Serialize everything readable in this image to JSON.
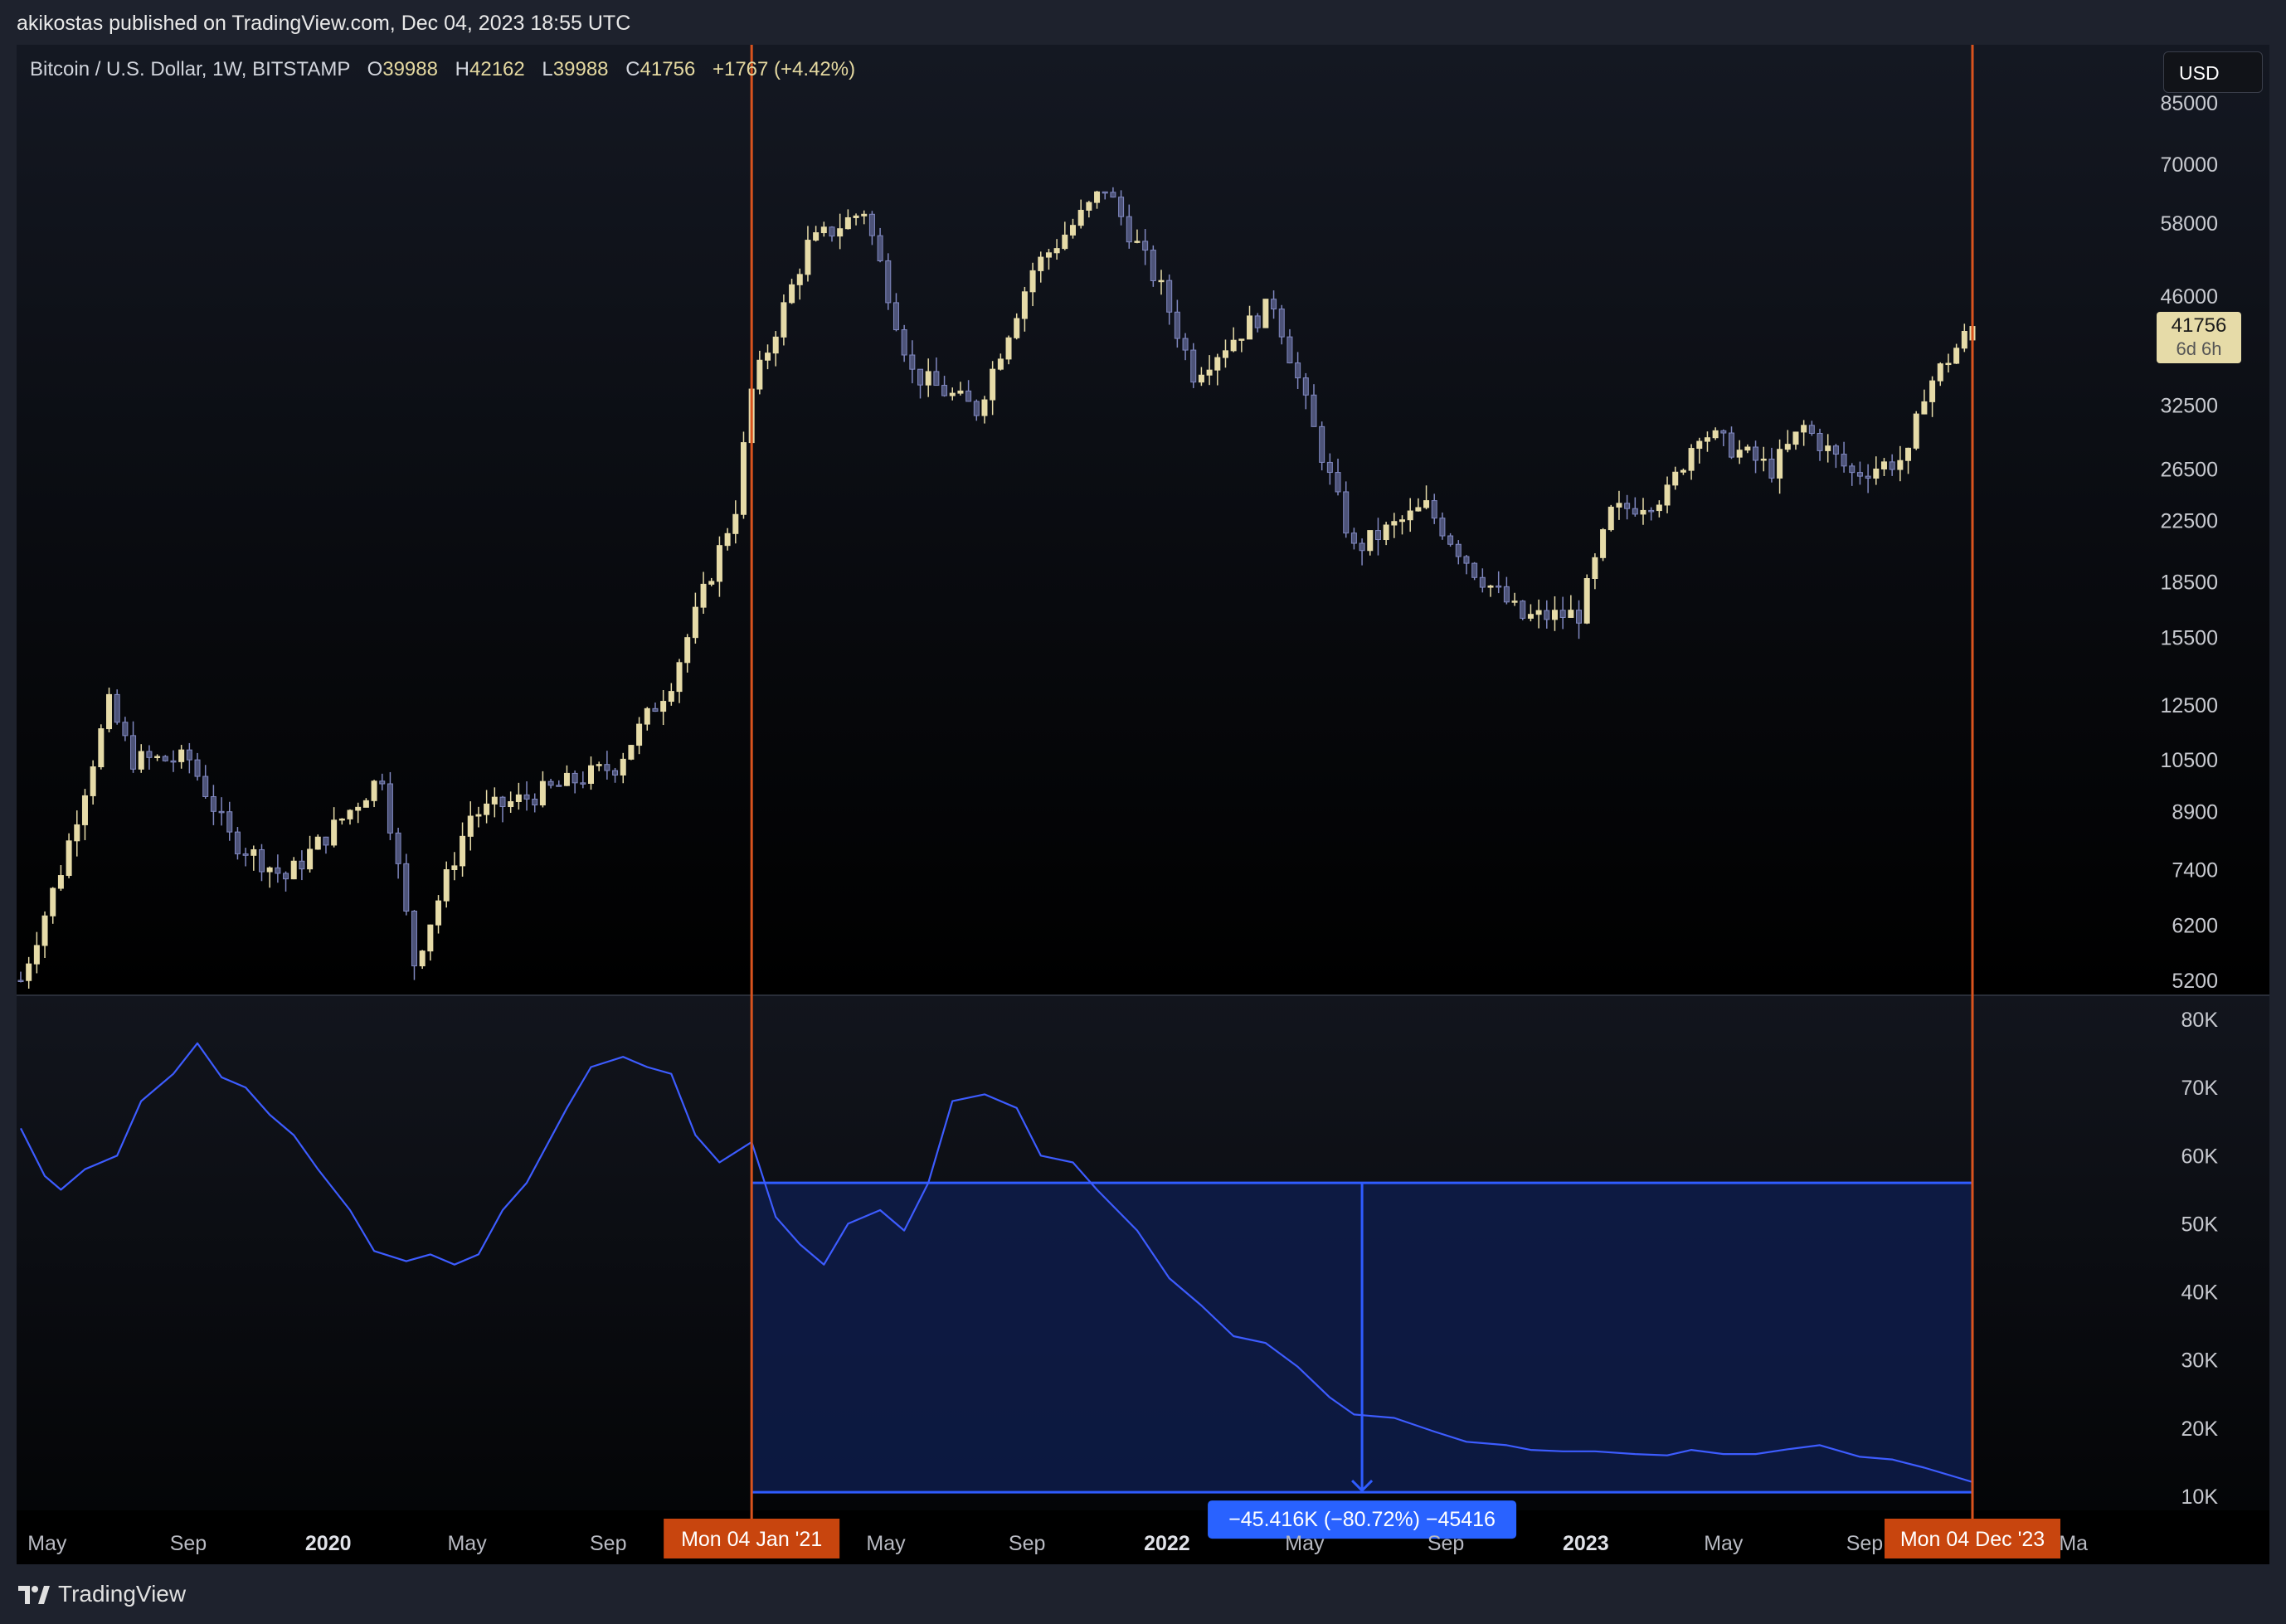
{
  "publisher_line": "akikostas published on TradingView.com, Dec 04, 2023 18:55 UTC",
  "legend": {
    "symbol": "Bitcoin / U.S. Dollar, 1W, BITSTAMP",
    "open_label": "O",
    "open": "39988",
    "high_label": "H",
    "high": "42162",
    "low_label": "L",
    "low": "39988",
    "close_label": "C",
    "close": "41756",
    "change": "+1767 (+4.42%)"
  },
  "currency_button": "USD",
  "price_tag": {
    "price": "41756",
    "countdown": "6d 6h"
  },
  "brand": "TradingView",
  "colors": {
    "background": "#000000",
    "bull_candle": "#e6dba8",
    "bear_candle": "#8088c0",
    "indicator_line": "#3d5cff",
    "range_fill": "#0e1c4a",
    "range_border": "#2f5cff",
    "vertical_marker": "#d9531e",
    "date_marker_bg": "#c8450e"
  },
  "chart_data": {
    "type": "candlestick",
    "title": "Bitcoin / U.S. Dollar, 1W, BITSTAMP",
    "price_axis": {
      "scale": "log",
      "ticks": [
        "85000",
        "70000",
        "58000",
        "46000",
        "32500",
        "26500",
        "22500",
        "18500",
        "15500",
        "12500",
        "10500",
        "8900",
        "7400",
        "6200",
        "5200"
      ]
    },
    "indicator_axis": {
      "ticks": [
        "80K",
        "70K",
        "60K",
        "50K",
        "40K",
        "30K",
        "20K",
        "10K"
      ]
    },
    "time_axis": {
      "ticks": [
        "May",
        "Sep",
        "2020",
        "May",
        "Sep",
        "May",
        "Sep",
        "2022",
        "May",
        "Sep",
        "2023",
        "May",
        "Sep",
        "Ma"
      ],
      "bold": [
        "2020",
        "2022",
        "2023"
      ]
    },
    "price_path": [
      [
        "2019-04-08",
        5200
      ],
      [
        "2019-05-13",
        7400
      ],
      [
        "2019-06-24",
        12500
      ],
      [
        "2019-07-15",
        10500
      ],
      [
        "2019-09-02",
        10500
      ],
      [
        "2019-10-07",
        8200
      ],
      [
        "2019-11-25",
        7200
      ],
      [
        "2020-01-13",
        8700
      ],
      [
        "2020-02-17",
        10000
      ],
      [
        "2020-03-16",
        5500
      ],
      [
        "2020-05-04",
        8800
      ],
      [
        "2020-06-22",
        9300
      ],
      [
        "2020-09-07",
        10300
      ],
      [
        "2020-10-26",
        13500
      ],
      [
        "2020-12-21",
        23500
      ],
      [
        "2021-01-04",
        34000
      ],
      [
        "2021-02-22",
        54000
      ],
      [
        "2021-04-12",
        60500
      ],
      [
        "2021-05-24",
        36000
      ],
      [
        "2021-07-19",
        32000
      ],
      [
        "2021-09-06",
        50000
      ],
      [
        "2021-10-25",
        61000
      ],
      [
        "2021-11-08",
        65000
      ],
      [
        "2021-12-27",
        47000
      ],
      [
        "2022-01-24",
        36000
      ],
      [
        "2022-04-04",
        45000
      ],
      [
        "2022-05-09",
        30000
      ],
      [
        "2022-06-13",
        20500
      ],
      [
        "2022-08-15",
        23500
      ],
      [
        "2022-09-26",
        19200
      ],
      [
        "2022-11-07",
        16500
      ],
      [
        "2022-12-26",
        16700
      ],
      [
        "2023-01-23",
        23000
      ],
      [
        "2023-03-13",
        24500
      ],
      [
        "2023-04-10",
        30000
      ],
      [
        "2023-06-12",
        26500
      ],
      [
        "2023-07-10",
        30300
      ],
      [
        "2023-08-21",
        26100
      ],
      [
        "2023-10-09",
        27500
      ],
      [
        "2023-10-23",
        34000
      ],
      [
        "2023-12-04",
        41756
      ]
    ],
    "last_candle": {
      "date": "2023-12-04",
      "open": 39988,
      "high": 42162,
      "low": 39988,
      "close": 41756
    },
    "indicator_path": [
      [
        "2019-04-08",
        64000
      ],
      [
        "2019-04-29",
        57000
      ],
      [
        "2019-05-13",
        55000
      ],
      [
        "2019-06-03",
        58000
      ],
      [
        "2019-07-01",
        60000
      ],
      [
        "2019-07-22",
        68000
      ],
      [
        "2019-08-19",
        72000
      ],
      [
        "2019-09-09",
        76500
      ],
      [
        "2019-09-30",
        71500
      ],
      [
        "2019-10-21",
        70000
      ],
      [
        "2019-11-11",
        66000
      ],
      [
        "2019-12-02",
        63000
      ],
      [
        "2019-12-23",
        58000
      ],
      [
        "2020-01-20",
        52000
      ],
      [
        "2020-02-10",
        46000
      ],
      [
        "2020-03-09",
        44500
      ],
      [
        "2020-03-30",
        45500
      ],
      [
        "2020-04-20",
        44000
      ],
      [
        "2020-05-11",
        45500
      ],
      [
        "2020-06-01",
        52000
      ],
      [
        "2020-06-22",
        56000
      ],
      [
        "2020-07-27",
        67000
      ],
      [
        "2020-08-17",
        73000
      ],
      [
        "2020-09-14",
        74500
      ],
      [
        "2020-10-05",
        73000
      ],
      [
        "2020-10-26",
        72000
      ],
      [
        "2020-11-16",
        63000
      ],
      [
        "2020-12-07",
        59000
      ],
      [
        "2021-01-04",
        62000
      ],
      [
        "2021-01-25",
        51000
      ],
      [
        "2021-02-15",
        47000
      ],
      [
        "2021-03-08",
        44000
      ],
      [
        "2021-03-29",
        50000
      ],
      [
        "2021-04-26",
        52000
      ],
      [
        "2021-05-17",
        49000
      ],
      [
        "2021-06-07",
        56000
      ],
      [
        "2021-06-28",
        68000
      ],
      [
        "2021-07-26",
        69000
      ],
      [
        "2021-08-23",
        67000
      ],
      [
        "2021-09-13",
        60000
      ],
      [
        "2021-10-11",
        59000
      ],
      [
        "2021-11-01",
        55000
      ],
      [
        "2021-12-06",
        49000
      ],
      [
        "2022-01-03",
        42000
      ],
      [
        "2022-01-31",
        38000
      ],
      [
        "2022-02-28",
        33500
      ],
      [
        "2022-03-28",
        32500
      ],
      [
        "2022-04-25",
        29000
      ],
      [
        "2022-05-23",
        24500
      ],
      [
        "2022-06-13",
        22000
      ],
      [
        "2022-07-18",
        21500
      ],
      [
        "2022-08-22",
        19500
      ],
      [
        "2022-09-19",
        18000
      ],
      [
        "2022-10-24",
        17500
      ],
      [
        "2022-11-14",
        16800
      ],
      [
        "2022-12-12",
        16600
      ],
      [
        "2023-01-09",
        16600
      ],
      [
        "2023-02-13",
        16200
      ],
      [
        "2023-03-13",
        16000
      ],
      [
        "2023-04-03",
        16800
      ],
      [
        "2023-05-01",
        16200
      ],
      [
        "2023-05-29",
        16200
      ],
      [
        "2023-06-26",
        16900
      ],
      [
        "2023-07-24",
        17500
      ],
      [
        "2023-08-28",
        15800
      ],
      [
        "2023-09-25",
        15400
      ],
      [
        "2023-10-23",
        14200
      ],
      [
        "2023-11-20",
        12800
      ],
      [
        "2023-12-04",
        12100
      ]
    ]
  },
  "measure_tool": {
    "start_date_label": "Mon 04 Jan '21",
    "end_date_label": "Mon 04 Dec '23",
    "top_value": 56000,
    "bottom_value": 10600,
    "result_label": "−45.416K (−80.72%) −45416"
  }
}
